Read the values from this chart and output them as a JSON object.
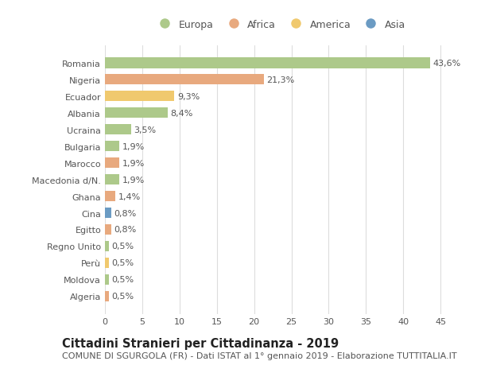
{
  "countries": [
    "Romania",
    "Nigeria",
    "Ecuador",
    "Albania",
    "Ucraina",
    "Bulgaria",
    "Marocco",
    "Macedonia d/N.",
    "Ghana",
    "Cina",
    "Egitto",
    "Regno Unito",
    "Perù",
    "Moldova",
    "Algeria"
  ],
  "values": [
    43.6,
    21.3,
    9.3,
    8.4,
    3.5,
    1.9,
    1.9,
    1.9,
    1.4,
    0.8,
    0.8,
    0.5,
    0.5,
    0.5,
    0.5
  ],
  "labels": [
    "43,6%",
    "21,3%",
    "9,3%",
    "8,4%",
    "3,5%",
    "1,9%",
    "1,9%",
    "1,9%",
    "1,4%",
    "0,8%",
    "0,8%",
    "0,5%",
    "0,5%",
    "0,5%",
    "0,5%"
  ],
  "colors": [
    "#adc98a",
    "#e8a97e",
    "#f0c96e",
    "#adc98a",
    "#adc98a",
    "#adc98a",
    "#e8a97e",
    "#adc98a",
    "#e8a97e",
    "#6b9bc3",
    "#e8a97e",
    "#adc98a",
    "#f0c96e",
    "#adc98a",
    "#e8a97e"
  ],
  "legend_labels": [
    "Europa",
    "Africa",
    "America",
    "Asia"
  ],
  "legend_colors": [
    "#adc98a",
    "#e8a97e",
    "#f0c96e",
    "#6b9bc3"
  ],
  "title": "Cittadini Stranieri per Cittadinanza - 2019",
  "subtitle": "COMUNE DI SGURGOLA (FR) - Dati ISTAT al 1° gennaio 2019 - Elaborazione TUTTITALIA.IT",
  "xlim": [
    0,
    47
  ],
  "xticks": [
    0,
    5,
    10,
    15,
    20,
    25,
    30,
    35,
    40,
    45
  ],
  "background_color": "#ffffff",
  "grid_color": "#dddddd",
  "bar_height": 0.65,
  "label_fontsize": 8,
  "title_fontsize": 10.5,
  "subtitle_fontsize": 8,
  "tick_fontsize": 8,
  "legend_fontsize": 9
}
